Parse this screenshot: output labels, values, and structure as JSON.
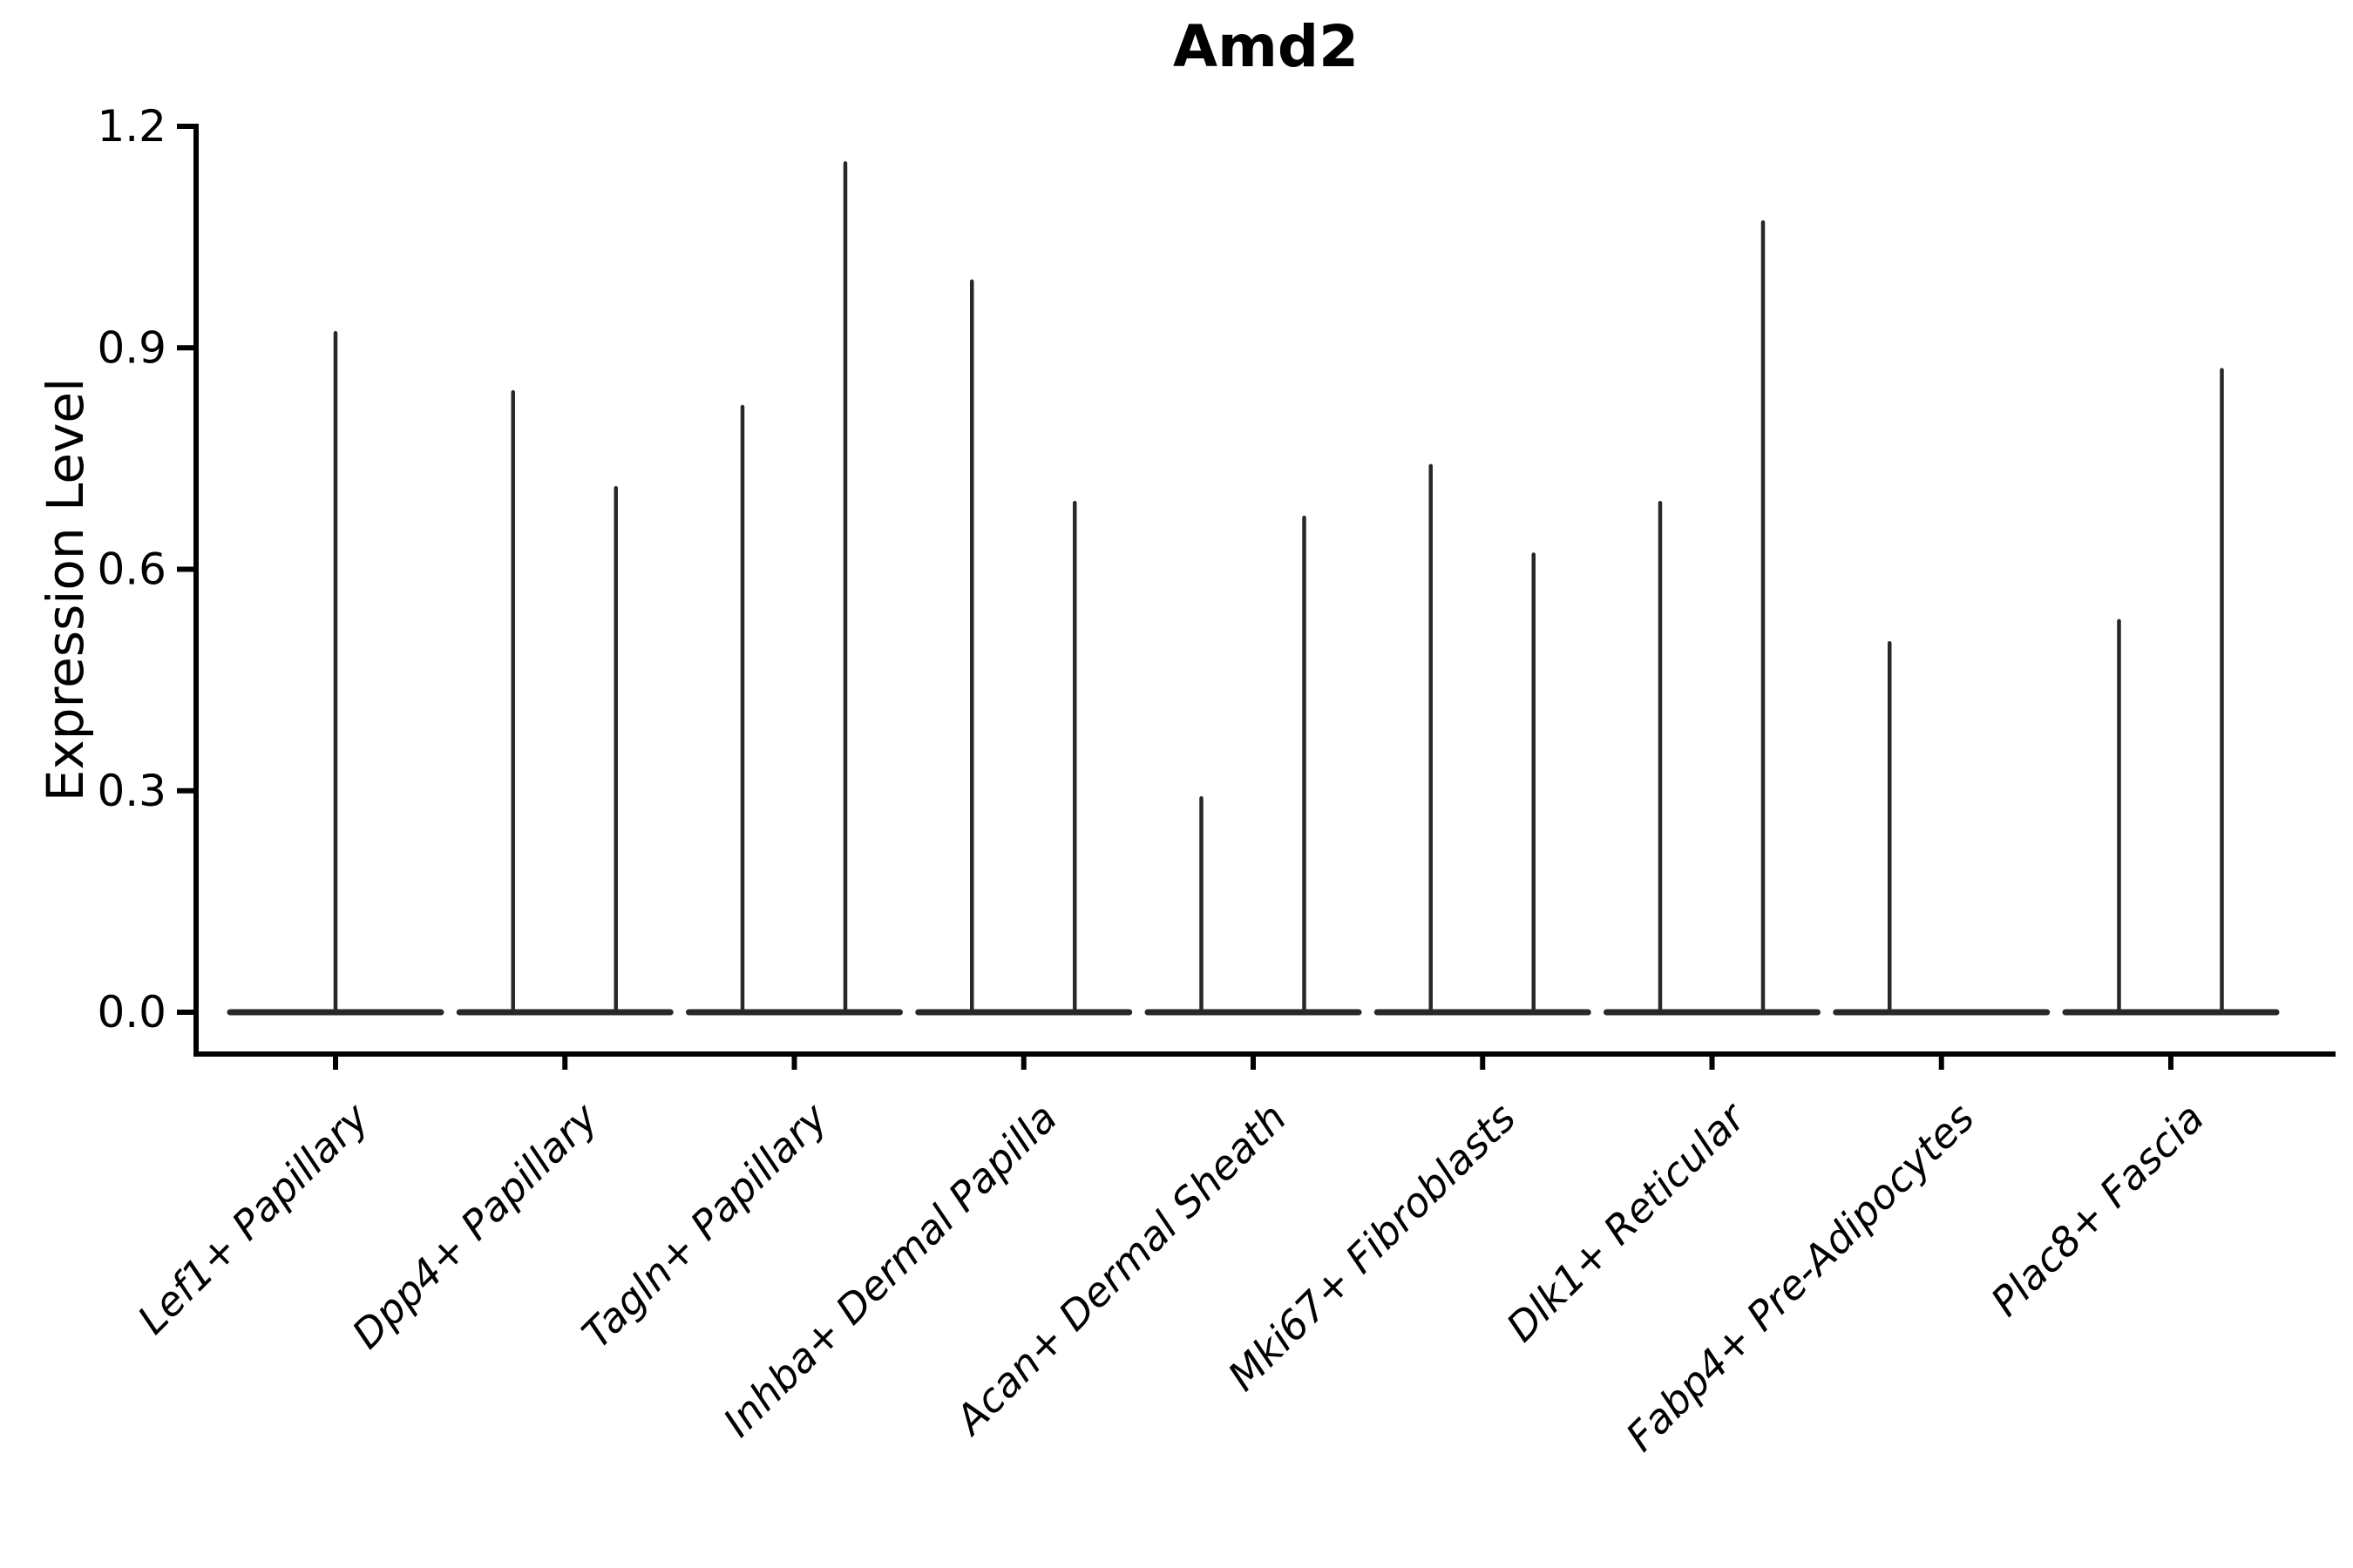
{
  "title": "Amd2",
  "axes": {
    "y_label": "Expression Level"
  },
  "chart_data": {
    "type": "violin",
    "title": "Amd2",
    "xlabel": "",
    "ylabel": "Expression Level",
    "ylim": [
      0,
      1.2
    ],
    "yticks": [
      {
        "value": 0.0,
        "label": "0.0"
      },
      {
        "value": 0.3,
        "label": "0.3"
      },
      {
        "value": 0.6,
        "label": "0.6"
      },
      {
        "value": 0.9,
        "label": "0.9"
      },
      {
        "value": 1.2,
        "label": "1.2"
      }
    ],
    "grid": false,
    "legend": "none",
    "categories": [
      "Lef1+ Papillary",
      "Dpp4+ Papillary",
      "Tagln+ Papillary",
      "Inhba+ Dermal Papilla",
      "Acan+ Dermal Sheath",
      "Mki67+ Fibroblasts",
      "Dlk1+ Reticular",
      "Fabp4+ Pre-Adipocytes",
      "Plac8+ Fascia"
    ],
    "description": "Flat zero-density violins with thin vertical spikes; most categories contain two side-by-side violins, each spike top = max expression",
    "violins": [
      {
        "category": "Lef1+ Papillary",
        "spikes": [
          {
            "position": "center",
            "max": 0.92
          }
        ]
      },
      {
        "category": "Dpp4+ Papillary",
        "spikes": [
          {
            "position": "left",
            "max": 0.84
          },
          {
            "position": "right",
            "max": 0.71
          }
        ]
      },
      {
        "category": "Tagln+ Papillary",
        "spikes": [
          {
            "position": "left",
            "max": 0.82
          },
          {
            "position": "right",
            "max": 1.15
          }
        ]
      },
      {
        "category": "Inhba+ Dermal Papilla",
        "spikes": [
          {
            "position": "left",
            "max": 0.99
          },
          {
            "position": "right",
            "max": 0.69
          }
        ]
      },
      {
        "category": "Acan+ Dermal Sheath",
        "spikes": [
          {
            "position": "left",
            "max": 0.29
          },
          {
            "position": "right",
            "max": 0.67
          }
        ]
      },
      {
        "category": "Mki67+ Fibroblasts",
        "spikes": [
          {
            "position": "left",
            "max": 0.74
          },
          {
            "position": "right",
            "max": 0.62
          }
        ]
      },
      {
        "category": "Dlk1+ Reticular",
        "spikes": [
          {
            "position": "left",
            "max": 0.69
          },
          {
            "position": "right",
            "max": 1.07
          }
        ]
      },
      {
        "category": "Fabp4+ Pre-Adipocytes",
        "spikes": [
          {
            "position": "left",
            "max": 0.5
          }
        ]
      },
      {
        "category": "Plac8+ Fascia",
        "spikes": [
          {
            "position": "left",
            "max": 0.53
          },
          {
            "position": "right",
            "max": 0.87
          }
        ]
      }
    ],
    "colors": {
      "background": "#ffffff",
      "axis": "#000000",
      "text": "#000000",
      "violin_stroke": "#282828"
    }
  }
}
